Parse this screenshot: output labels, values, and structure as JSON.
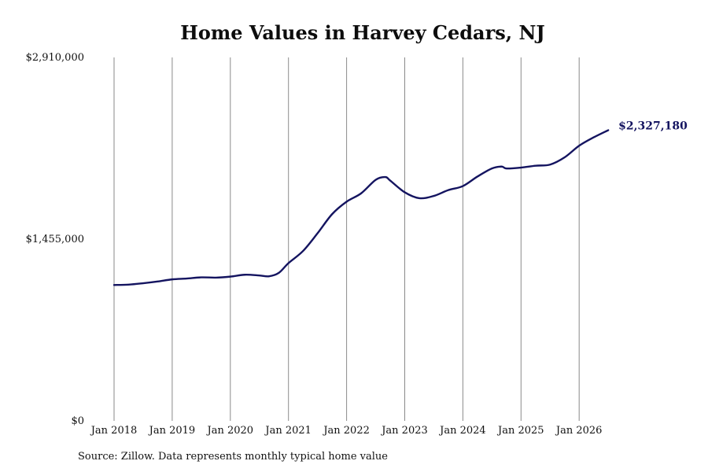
{
  "chart_data": {
    "type": "line",
    "title": "Home Values in Harvey Cedars, NJ",
    "xlabel": "",
    "ylabel": "",
    "x_tick_labels": [
      "Jan 2018",
      "Jan 2019",
      "Jan 2020",
      "Jan 2021",
      "Jan 2022",
      "Jan 2023",
      "Jan 2024",
      "Jan 2025",
      "Jan 2026"
    ],
    "y_tick_labels": [
      "$0",
      "$1,455,000",
      "$2,910,000"
    ],
    "ylim": [
      0,
      2910000
    ],
    "xlim": [
      "2018-01",
      "2026-07"
    ],
    "grid": "vertical",
    "line_color": "#141460",
    "end_label": "$2,327,180",
    "source": "Source: Zillow. Data represents monthly typical home value",
    "series": [
      {
        "points": [
          [
            "2018-01",
            1088000
          ],
          [
            "2018-04",
            1091000
          ],
          [
            "2018-07",
            1102000
          ],
          [
            "2018-10",
            1116000
          ],
          [
            "2019-01",
            1133000
          ],
          [
            "2019-04",
            1140000
          ],
          [
            "2019-07",
            1149000
          ],
          [
            "2019-10",
            1147000
          ],
          [
            "2020-01",
            1155000
          ],
          [
            "2020-04",
            1170000
          ],
          [
            "2020-07",
            1164000
          ],
          [
            "2020-09",
            1158000
          ],
          [
            "2020-11",
            1185000
          ],
          [
            "2021-01",
            1263000
          ],
          [
            "2021-04",
            1360000
          ],
          [
            "2021-07",
            1502000
          ],
          [
            "2021-10",
            1655000
          ],
          [
            "2022-01",
            1755000
          ],
          [
            "2022-04",
            1822000
          ],
          [
            "2022-07",
            1930000
          ],
          [
            "2022-09",
            1952000
          ],
          [
            "2022-10",
            1924000
          ],
          [
            "2023-01",
            1830000
          ],
          [
            "2023-04",
            1783000
          ],
          [
            "2023-07",
            1801000
          ],
          [
            "2023-10",
            1848000
          ],
          [
            "2024-01",
            1880000
          ],
          [
            "2024-04",
            1956000
          ],
          [
            "2024-07",
            2021000
          ],
          [
            "2024-09",
            2036000
          ],
          [
            "2024-10",
            2021000
          ],
          [
            "2025-01",
            2028000
          ],
          [
            "2025-04",
            2043000
          ],
          [
            "2025-07",
            2052000
          ],
          [
            "2025-10",
            2110000
          ],
          [
            "2026-01",
            2203000
          ],
          [
            "2026-04",
            2270000
          ],
          [
            "2026-07",
            2327180
          ]
        ]
      }
    ]
  }
}
